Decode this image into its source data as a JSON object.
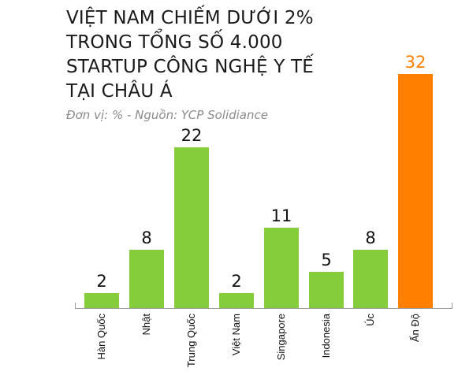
{
  "title_lines": [
    "VIỆT NAM CHIẾM DƯỚI 2%",
    "TRONG TỔNG SỐ 4.000",
    "STARTUP CÔNG NGHỆ Y TẾ",
    "TẠI CHÂU Á"
  ],
  "subtitle": "Đơn vị: %  - Nguồn: YCP Solidiance",
  "colors": {
    "default_bar": "#86cd3c",
    "highlight_bar": "#ff7f00",
    "highlight_label": "#ff7f00",
    "text": "#111111",
    "axis": "#9a9a9a"
  },
  "chart_data": {
    "type": "bar",
    "title": "VIỆT NAM CHIẾM DƯỚI 2% TRONG TỔNG SỐ 4.000 STARTUP CÔNG NGHỆ Y TẾ TẠI CHÂU Á",
    "subtitle": "Đơn vị: %  - Nguồn: YCP Solidiance",
    "categories": [
      "Hàn Quốc",
      "Nhật",
      "Trung Quốc",
      "Việt Nam",
      "Singapore",
      "Indonesia",
      "Úc",
      "Ấn Độ"
    ],
    "values": [
      2,
      8,
      22,
      2,
      11,
      5,
      8,
      32
    ],
    "highlight": [
      "Ấn Độ"
    ],
    "xlabel": "",
    "ylabel": "%",
    "ylim": [
      0,
      32
    ],
    "grid": false,
    "data_labels": true,
    "tick_label_rotation": -90
  }
}
